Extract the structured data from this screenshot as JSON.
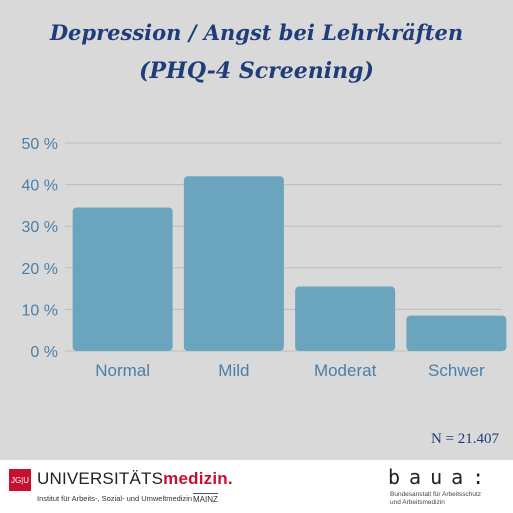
{
  "title_line1": "Depression / Angst bei Lehrkräften",
  "title_line2": "(PHQ-4 Screening)",
  "n_label": "N = 21.407",
  "footer": {
    "jgu_logo": "JG|U",
    "uni_prefix": "UNIVERSITÄTS",
    "uni_suffix": "medizin.",
    "institute": "Institut für Arbeits-, Sozial- und Umweltmedizin",
    "city": "MAINZ",
    "baua_logo": "baua:",
    "baua_line1": "Bundesanstalt für Arbeitsschutz",
    "baua_line2": "und Arbeitsmedizin"
  },
  "colors": {
    "bar": "#6aa5bd",
    "text": "#1f3d7a",
    "axis": "#4a7fa8"
  },
  "chart_data": {
    "type": "bar",
    "categories": [
      "Normal",
      "Mild",
      "Moderat",
      "Schwer"
    ],
    "values": [
      34.5,
      42,
      15.5,
      8.5
    ],
    "yticks": [
      "0 %",
      "10 %",
      "20 %",
      "30 %",
      "40 %",
      "50 %"
    ],
    "ylim": [
      0,
      50
    ],
    "grid": true
  }
}
